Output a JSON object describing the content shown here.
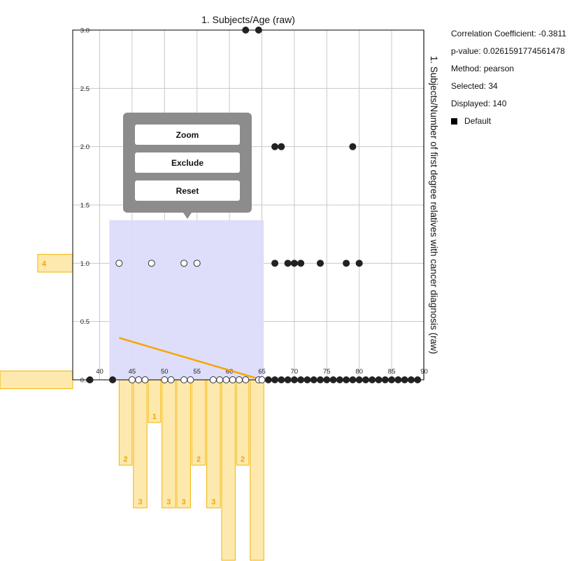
{
  "stats": {
    "correlation": "Correlation Coefficient: -0.3811",
    "p_value": "p-value: 0.0261591774561478",
    "method": "Method: pearson",
    "selected": "Selected: 34",
    "displayed": "Displayed: 140",
    "legend_label": "Default"
  },
  "context_menu": {
    "zoom": "Zoom",
    "exclude": "Exclude",
    "reset": "Reset"
  },
  "chart_data": {
    "type": "scatter",
    "title": "1. Subjects/Age (raw)",
    "xlabel": "",
    "ylabel": "1. Subjects/Number of first degree relatives with cancer diagnosis (raw)",
    "xlim": [
      40,
      90
    ],
    "ylim": [
      0,
      3
    ],
    "x_ticks": [
      40,
      45,
      50,
      55,
      60,
      65,
      70,
      75,
      80,
      85,
      90
    ],
    "y_ticks": [
      0,
      0.5,
      1,
      1.5,
      2,
      2.5,
      3
    ],
    "x_tick_labels": [
      "40",
      "45",
      "50",
      "55",
      "60",
      "65",
      "70",
      "75",
      "80",
      "85",
      "90"
    ],
    "y_tick_labels": [
      "0.0",
      "0.5",
      "1.0",
      "1.5",
      "2.0",
      "2.5",
      "3.0"
    ],
    "grid": true,
    "colors": {
      "point": "#222222",
      "selected_fill": "#ffffff",
      "fit_line": "#f7a600",
      "selection": "#dcdcfb",
      "histogram": "#fde9ad",
      "histogram_border": "#f5b400",
      "histogram_label": "#f5a600"
    },
    "selection": {
      "x": [
        41.5,
        65.3
      ],
      "y": [
        0,
        1.37
      ]
    },
    "points": [
      {
        "x": 38.5,
        "y": 0
      },
      {
        "x": 42.0,
        "y": 0
      },
      {
        "x": 45.0,
        "y": 0,
        "selected": true
      },
      {
        "x": 46.0,
        "y": 0,
        "selected": true
      },
      {
        "x": 47.0,
        "y": 0,
        "selected": true
      },
      {
        "x": 50.0,
        "y": 0,
        "selected": true
      },
      {
        "x": 51.0,
        "y": 0,
        "selected": true
      },
      {
        "x": 53.0,
        "y": 0,
        "selected": true
      },
      {
        "x": 54.0,
        "y": 0,
        "selected": true
      },
      {
        "x": 57.5,
        "y": 0,
        "selected": true
      },
      {
        "x": 58.5,
        "y": 0,
        "selected": true
      },
      {
        "x": 59.5,
        "y": 0,
        "selected": true
      },
      {
        "x": 60.5,
        "y": 0,
        "selected": true
      },
      {
        "x": 61.5,
        "y": 0,
        "selected": true
      },
      {
        "x": 62.5,
        "y": 0,
        "selected": true
      },
      {
        "x": 64.5,
        "y": 0,
        "selected": true
      },
      {
        "x": 65.0,
        "y": 0,
        "selected": true
      },
      {
        "x": 66.0,
        "y": 0
      },
      {
        "x": 67.0,
        "y": 0
      },
      {
        "x": 68.0,
        "y": 0
      },
      {
        "x": 69.0,
        "y": 0
      },
      {
        "x": 70.0,
        "y": 0
      },
      {
        "x": 71.0,
        "y": 0
      },
      {
        "x": 72.0,
        "y": 0
      },
      {
        "x": 73.0,
        "y": 0
      },
      {
        "x": 74.0,
        "y": 0
      },
      {
        "x": 75.0,
        "y": 0
      },
      {
        "x": 76.0,
        "y": 0
      },
      {
        "x": 77.0,
        "y": 0
      },
      {
        "x": 78.0,
        "y": 0
      },
      {
        "x": 79.0,
        "y": 0
      },
      {
        "x": 80.0,
        "y": 0
      },
      {
        "x": 81.0,
        "y": 0
      },
      {
        "x": 82.0,
        "y": 0
      },
      {
        "x": 83.0,
        "y": 0
      },
      {
        "x": 84.0,
        "y": 0
      },
      {
        "x": 85.0,
        "y": 0
      },
      {
        "x": 86.0,
        "y": 0
      },
      {
        "x": 87.0,
        "y": 0
      },
      {
        "x": 88.0,
        "y": 0
      },
      {
        "x": 89.0,
        "y": 0
      },
      {
        "x": 43.0,
        "y": 1,
        "selected": true
      },
      {
        "x": 48.0,
        "y": 1,
        "selected": true
      },
      {
        "x": 53.0,
        "y": 1,
        "selected": true
      },
      {
        "x": 55.0,
        "y": 1,
        "selected": true
      },
      {
        "x": 67.0,
        "y": 1
      },
      {
        "x": 69.0,
        "y": 1
      },
      {
        "x": 70.0,
        "y": 1
      },
      {
        "x": 71.0,
        "y": 1
      },
      {
        "x": 74.0,
        "y": 1
      },
      {
        "x": 78.0,
        "y": 1
      },
      {
        "x": 80.0,
        "y": 1
      },
      {
        "x": 56.0,
        "y": 2
      },
      {
        "x": 67.0,
        "y": 2
      },
      {
        "x": 68.0,
        "y": 2
      },
      {
        "x": 79.0,
        "y": 2
      },
      {
        "x": 62.5,
        "y": 3
      },
      {
        "x": 64.5,
        "y": 3
      }
    ],
    "fit_line": {
      "x": [
        43.0,
        65.0
      ],
      "y": [
        0.36,
        0.0
      ]
    },
    "x_histogram": [
      {
        "x": [
          43.0,
          45.0
        ],
        "count": 2,
        "label": "2"
      },
      {
        "x": [
          45.2,
          47.3
        ],
        "count": 3,
        "label": "3"
      },
      {
        "x": [
          47.5,
          49.4
        ],
        "count": 1,
        "label": "1"
      },
      {
        "x": [
          49.6,
          51.7
        ],
        "count": 3,
        "label": "3"
      },
      {
        "x": [
          51.9,
          54.0
        ],
        "count": 3,
        "label": "3"
      },
      {
        "x": [
          54.2,
          56.3
        ],
        "count": 2,
        "label": "2"
      },
      {
        "x": [
          56.5,
          58.6
        ],
        "count": 3,
        "label": "3"
      },
      {
        "x": [
          58.8,
          60.9
        ],
        "count": 5,
        "label": ""
      },
      {
        "x": [
          61.1,
          63.0
        ],
        "count": 2,
        "label": "2"
      },
      {
        "x": [
          63.2,
          65.3
        ],
        "count": 5,
        "label": ""
      }
    ],
    "y_histogram": [
      {
        "y": [
          0.9,
          1.1
        ],
        "count": 4,
        "label": "4"
      },
      {
        "y": [
          -0.1,
          0.1
        ],
        "count": 9,
        "label": ""
      }
    ]
  }
}
